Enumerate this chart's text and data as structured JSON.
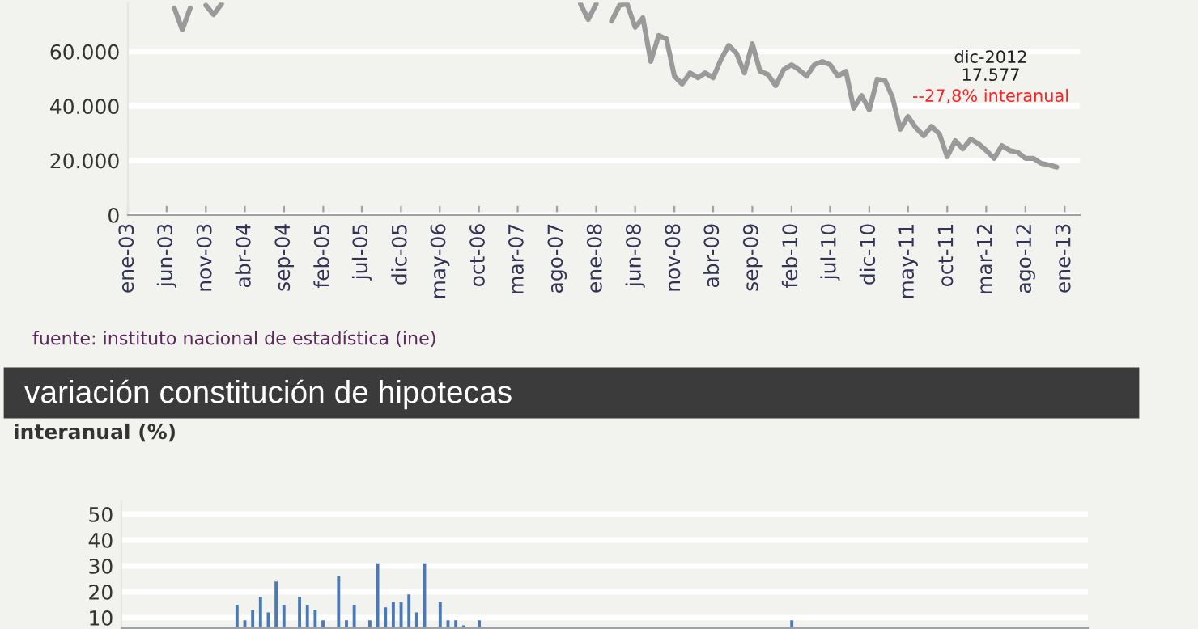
{
  "chart_data": [
    {
      "type": "line",
      "x": [
        "2003-07",
        "2003-08",
        "2003-09",
        "2003-10",
        "2003-11",
        "2003-12",
        "2004-01",
        "2004-02",
        "2004-03",
        "2004-04",
        "2004-05",
        "2004-06",
        "2004-07",
        "2004-08",
        "2004-09",
        "2004-10",
        "2004-11",
        "2004-12",
        "2005-01",
        "2005-02",
        "2005-03",
        "2005-04",
        "2005-05",
        "2005-06",
        "2005-07",
        "2005-08",
        "2005-09",
        "2005-10",
        "2005-11",
        "2005-12",
        "2006-01",
        "2006-02",
        "2006-03",
        "2006-04",
        "2006-05",
        "2006-06",
        "2006-07",
        "2006-08",
        "2006-09",
        "2006-10",
        "2006-11",
        "2006-12",
        "2007-01",
        "2007-02",
        "2007-03",
        "2007-04",
        "2007-05",
        "2007-06",
        "2007-07",
        "2007-08",
        "2007-09",
        "2007-10",
        "2007-11",
        "2007-12",
        "2008-01",
        "2008-02",
        "2008-03",
        "2008-04",
        "2008-05",
        "2008-06",
        "2008-07",
        "2008-08",
        "2008-09",
        "2008-10",
        "2008-11",
        "2008-12",
        "2009-01",
        "2009-02",
        "2009-03",
        "2009-04",
        "2009-05",
        "2009-06",
        "2009-07",
        "2009-08",
        "2009-09",
        "2009-10",
        "2009-11",
        "2009-12",
        "2010-01",
        "2010-02",
        "2010-03",
        "2010-04",
        "2010-05",
        "2010-06",
        "2010-07",
        "2010-08",
        "2010-09",
        "2010-10",
        "2010-11",
        "2010-12",
        "2011-01",
        "2011-02",
        "2011-03",
        "2011-04",
        "2011-05",
        "2011-06",
        "2011-07",
        "2011-08",
        "2011-09",
        "2011-10",
        "2011-11",
        "2011-12",
        "2012-01",
        "2012-02",
        "2012-03",
        "2012-04",
        "2012-05",
        "2012-06",
        "2012-07",
        "2012-08",
        "2012-09",
        "2012-10",
        "2012-11",
        "2012-12"
      ],
      "series": [
        {
          "color": "#9a9a9a",
          "values": [
            76000,
            68000,
            76000,
            null,
            77000,
            73600,
            77500,
            null,
            null,
            null,
            null,
            null,
            null,
            null,
            null,
            null,
            null,
            null,
            null,
            null,
            null,
            null,
            null,
            null,
            null,
            null,
            null,
            null,
            null,
            null,
            null,
            null,
            null,
            null,
            null,
            null,
            null,
            null,
            null,
            null,
            null,
            null,
            null,
            null,
            null,
            null,
            null,
            null,
            null,
            null,
            null,
            null,
            77500,
            71800,
            77500,
            null,
            71200,
            77000,
            77500,
            68900,
            72400,
            56400,
            65900,
            64700,
            51000,
            48100,
            52200,
            50400,
            52200,
            50400,
            57000,
            62300,
            59400,
            52200,
            62900,
            52800,
            51600,
            47500,
            53400,
            55200,
            53400,
            51000,
            55200,
            56400,
            55200,
            51000,
            52800,
            39200,
            43900,
            38600,
            49900,
            49300,
            43300,
            31500,
            36200,
            32000,
            29100,
            32600,
            29700,
            21400,
            27300,
            24300,
            27900,
            26100,
            23700,
            20800,
            25500,
            23700,
            23100,
            20800,
            20800,
            19000,
            18400,
            17600
          ]
        }
      ],
      "xlim": [
        "2003-01",
        "2013-03"
      ],
      "xticks": [
        {
          "value": "2003-01",
          "label": "ene-03"
        },
        {
          "value": "2003-06",
          "label": "jun-03"
        },
        {
          "value": "2003-11",
          "label": "nov-03"
        },
        {
          "value": "2004-04",
          "label": "abr-04"
        },
        {
          "value": "2004-09",
          "label": "sep-04"
        },
        {
          "value": "2005-02",
          "label": "feb-05"
        },
        {
          "value": "2005-07",
          "label": "jul-05"
        },
        {
          "value": "2005-12",
          "label": "dic-05"
        },
        {
          "value": "2006-05",
          "label": "may-06"
        },
        {
          "value": "2006-10",
          "label": "oct-06"
        },
        {
          "value": "2007-03",
          "label": "mar-07"
        },
        {
          "value": "2007-08",
          "label": "ago-07"
        },
        {
          "value": "2008-01",
          "label": "ene-08"
        },
        {
          "value": "2008-06",
          "label": "jun-08"
        },
        {
          "value": "2008-11",
          "label": "nov-08"
        },
        {
          "value": "2009-04",
          "label": "abr-09"
        },
        {
          "value": "2009-09",
          "label": "sep-09"
        },
        {
          "value": "2010-02",
          "label": "feb-10"
        },
        {
          "value": "2010-07",
          "label": "jul-10"
        },
        {
          "value": "2010-12",
          "label": "dic-10"
        },
        {
          "value": "2011-05",
          "label": "may-11"
        },
        {
          "value": "2011-10",
          "label": "oct-11"
        },
        {
          "value": "2012-03",
          "label": "mar-12"
        },
        {
          "value": "2012-08",
          "label": "ago-12"
        },
        {
          "value": "2013-01",
          "label": "ene-13"
        }
      ],
      "ylim": [
        0,
        78000
      ],
      "yticks": [
        {
          "value": 0,
          "label": "0"
        },
        {
          "value": 20000,
          "label": "20.000"
        },
        {
          "value": 40000,
          "label": "40.000"
        },
        {
          "value": 60000,
          "label": "60.000"
        }
      ],
      "grid": "y",
      "annotations": [
        "dic-2012",
        "17.577",
        "--27,8% interanual",
        "fuente: instituto nacional de estadística (ine)"
      ]
    },
    {
      "type": "bar",
      "title": "variación constitución de hipotecas",
      "ylabel": "interanual (%)",
      "categories": [
        null,
        null,
        null,
        null,
        null,
        null,
        null,
        null,
        null,
        null,
        null,
        null,
        null,
        null,
        null,
        null,
        null,
        null,
        null,
        null,
        null,
        null,
        null,
        null,
        null,
        null,
        null,
        null,
        null,
        null,
        null,
        null,
        null,
        null,
        null,
        null,
        null,
        null,
        null,
        null,
        null,
        null,
        null,
        null,
        null,
        null,
        null,
        null,
        null,
        null,
        null,
        null,
        null,
        null,
        null,
        null,
        null,
        null,
        null,
        null,
        null,
        null,
        null,
        null,
        null,
        null,
        null,
        null,
        null,
        null,
        null,
        null,
        null,
        null,
        null,
        null,
        null,
        null,
        null,
        null,
        null,
        null,
        null,
        null,
        null,
        null,
        null,
        null,
        null,
        null,
        null,
        null,
        null,
        null,
        null,
        null,
        null,
        null,
        null,
        null,
        null,
        null,
        null,
        null,
        null,
        null,
        null,
        null,
        null,
        null,
        null,
        null,
        null,
        null,
        null,
        null,
        null,
        null,
        null,
        null,
        null,
        null,
        null
      ],
      "values": [
        null,
        null,
        null,
        null,
        null,
        null,
        null,
        null,
        null,
        null,
        null,
        null,
        null,
        null,
        15,
        9,
        13,
        18,
        12,
        24,
        15,
        null,
        18,
        15,
        13,
        9,
        null,
        26,
        9,
        15,
        null,
        9,
        31,
        14,
        16,
        16,
        19,
        12,
        31,
        null,
        16,
        9,
        9,
        7,
        null,
        9,
        null,
        null,
        null,
        null,
        null,
        null,
        null,
        null,
        null,
        null,
        null,
        null,
        null,
        null,
        null,
        null,
        null,
        null,
        null,
        null,
        null,
        null,
        null,
        null,
        null,
        null,
        null,
        null,
        null,
        null,
        null,
        null,
        null,
        null,
        null,
        null,
        null,
        null,
        null,
        9,
        null,
        null,
        null,
        null,
        null,
        null,
        null,
        null,
        null,
        null,
        null,
        null,
        null,
        null,
        null,
        null,
        null,
        null,
        null,
        null,
        null,
        null,
        null,
        null,
        null,
        null,
        null,
        null,
        null,
        null,
        null,
        null,
        null,
        null,
        null,
        null,
        null
      ],
      "color": "#4a7ab5",
      "ylim": [
        6,
        55
      ],
      "yticks": [
        10,
        20,
        30,
        40,
        50
      ],
      "grid": "y",
      "tick_labels": "y"
    }
  ]
}
